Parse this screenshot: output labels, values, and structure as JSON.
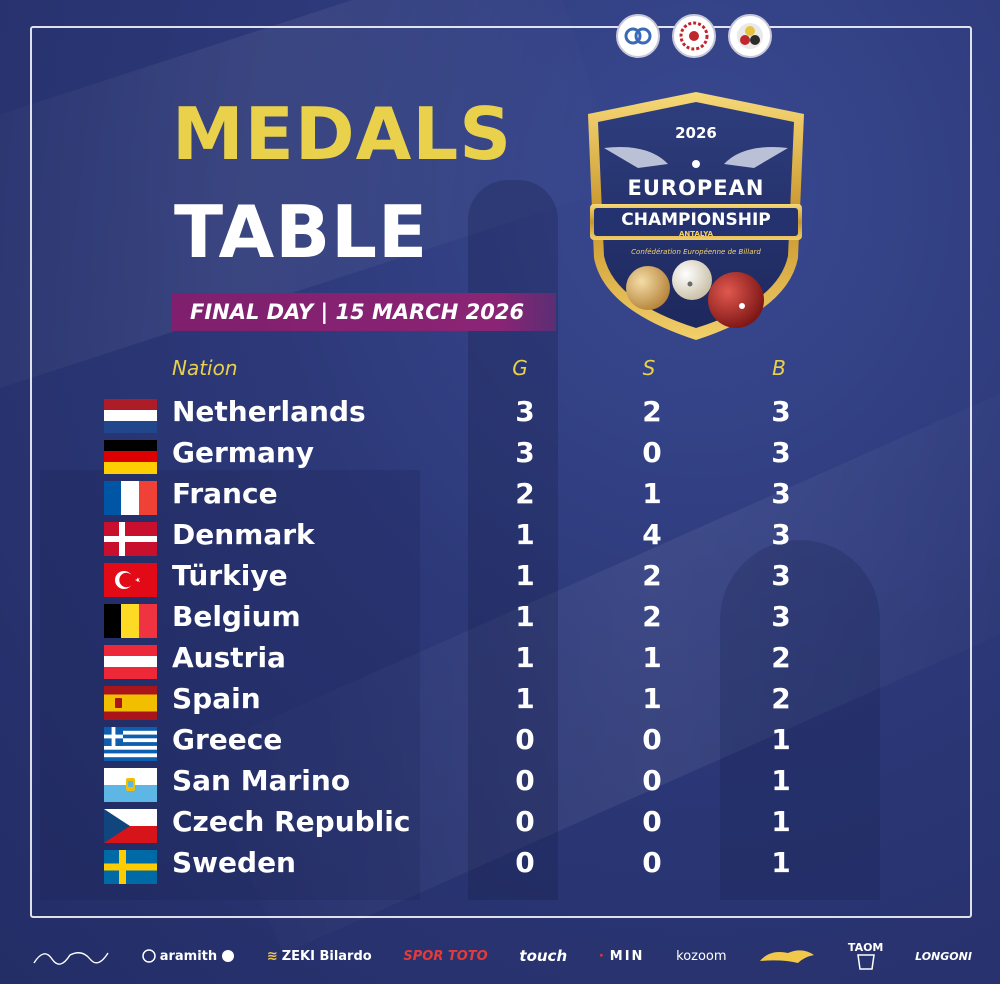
{
  "header": {
    "title_line1": "MEDALS",
    "title_line2": "TABLE",
    "date_banner": "FINAL DAY | 15 MARCH 2026"
  },
  "badge": {
    "year": "2026",
    "line1": "EUROPEAN",
    "line2": "CHAMPIONSHIP",
    "city": "ANTALYA",
    "org": "Confédération Européenne de Billard"
  },
  "table": {
    "columns": {
      "nation": "Nation",
      "gold": "G",
      "silver": "S",
      "bronze": "B"
    },
    "rows": [
      {
        "nation": "Netherlands",
        "flag": "netherlands-flag",
        "g": "3",
        "s": "2",
        "b": "3"
      },
      {
        "nation": "Germany",
        "flag": "germany-flag",
        "g": "3",
        "s": "0",
        "b": "3"
      },
      {
        "nation": "France",
        "flag": "france-flag",
        "g": "2",
        "s": "1",
        "b": "3"
      },
      {
        "nation": "Denmark",
        "flag": "denmark-flag",
        "g": "1",
        "s": "4",
        "b": "3"
      },
      {
        "nation": "Türkiye",
        "flag": "turkiye-flag",
        "g": "1",
        "s": "2",
        "b": "3"
      },
      {
        "nation": "Belgium",
        "flag": "belgium-flag",
        "g": "1",
        "s": "2",
        "b": "3"
      },
      {
        "nation": "Austria",
        "flag": "austria-flag",
        "g": "1",
        "s": "1",
        "b": "2"
      },
      {
        "nation": "Spain",
        "flag": "spain-flag",
        "g": "1",
        "s": "1",
        "b": "2"
      },
      {
        "nation": "Greece",
        "flag": "greece-flag",
        "g": "0",
        "s": "0",
        "b": "1"
      },
      {
        "nation": "San Marino",
        "flag": "san-marino-flag",
        "g": "0",
        "s": "0",
        "b": "1"
      },
      {
        "nation": "Czech Republic",
        "flag": "czech-republic-flag",
        "g": "0",
        "s": "0",
        "b": "1"
      },
      {
        "nation": "Sweden",
        "flag": "sweden-flag",
        "g": "0",
        "s": "0",
        "b": "1"
      }
    ]
  },
  "sponsors": [
    {
      "name": "Erkan Altındiş signature"
    },
    {
      "name": "aramith",
      "label": "aramith"
    },
    {
      "name": "zeki-bilardo",
      "label": "ZEKI Bilardo"
    },
    {
      "name": "spor-toto",
      "label": "SPOR TOTO"
    },
    {
      "name": "touch",
      "label": "touch"
    },
    {
      "name": "min",
      "label": "MIN"
    },
    {
      "name": "kozoom",
      "label": "kozoom"
    },
    {
      "name": "panther",
      "label": ""
    },
    {
      "name": "taom",
      "label": "TAOM"
    },
    {
      "name": "longoni",
      "label": "LONGONI"
    }
  ],
  "colors": {
    "background": "#2c3878",
    "title_gold": "#e9d14b",
    "banner": "#8b2474"
  }
}
